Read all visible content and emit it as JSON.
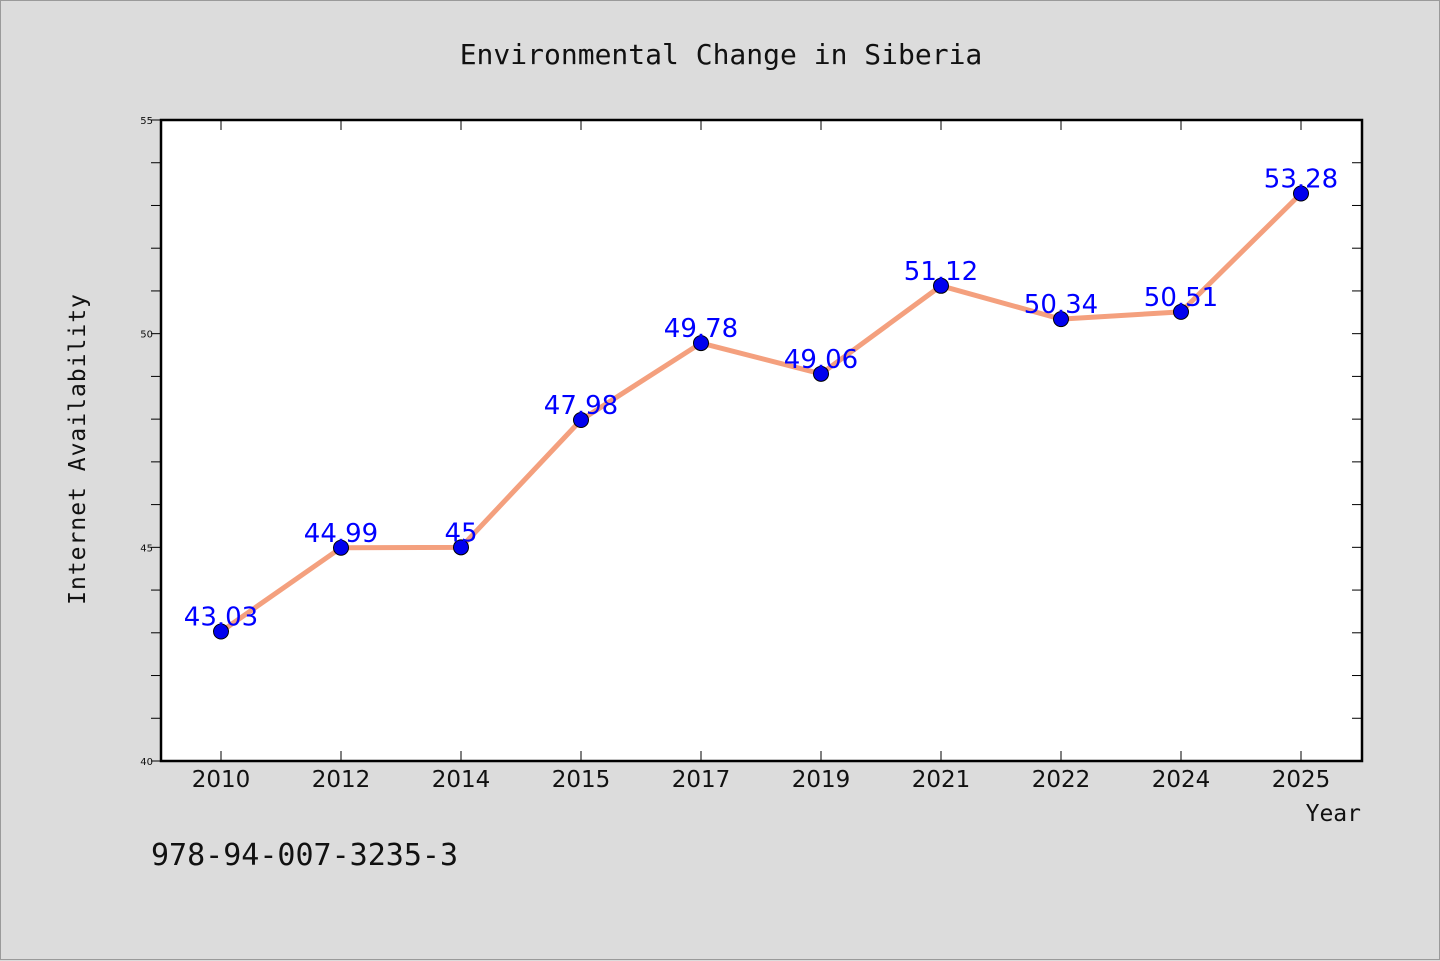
{
  "chart_data": {
    "type": "line",
    "title": "Environmental Change in Siberia",
    "xlabel": "Year",
    "ylabel": "Internet Availability",
    "categories": [
      "2010",
      "2012",
      "2014",
      "2015",
      "2017",
      "2019",
      "2021",
      "2022",
      "2024",
      "2025"
    ],
    "series": [
      {
        "values": [
          43.03,
          44.99,
          45,
          47.98,
          49.78,
          49.06,
          51.12,
          50.34,
          50.51,
          53.28
        ],
        "labels": [
          "43.03",
          "44.99",
          "45",
          "47.98",
          "49.78",
          "49.06",
          "51.12",
          "50.34",
          "50.51",
          "53.28"
        ],
        "line_color": "#f4a07e",
        "marker_color": "#0000ee"
      }
    ],
    "ylim": [
      40,
      55
    ],
    "yticks": [
      "40",
      "45",
      "50",
      "55"
    ],
    "grid": false,
    "legend": "none"
  },
  "footer": {
    "code": "978-94-007-3235-3"
  }
}
